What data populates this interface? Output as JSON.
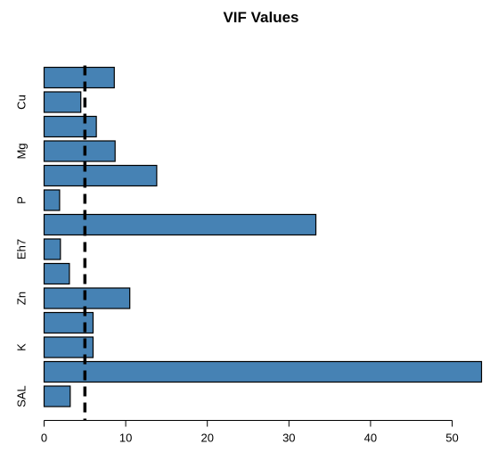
{
  "chart_data": {
    "type": "bar",
    "orientation": "horizontal",
    "title": "VIF Values",
    "xlabel": "",
    "ylabel": "",
    "categories": [
      "SAL",
      "",
      "K",
      "",
      "Zn",
      "",
      "Eh7",
      "",
      "P",
      "",
      "Mg",
      "",
      "Cu",
      ""
    ],
    "values": [
      3.2,
      53.6,
      6.0,
      6.0,
      10.5,
      3.1,
      2.0,
      33.3,
      1.9,
      13.8,
      8.7,
      6.4,
      4.5,
      8.6
    ],
    "xlim": [
      0,
      53.6
    ],
    "xticks": [
      0,
      10,
      20,
      30,
      40,
      50
    ],
    "reference_line": {
      "x": 5,
      "style": "dashed"
    },
    "bar_color": "#4682b4",
    "grid": false
  }
}
